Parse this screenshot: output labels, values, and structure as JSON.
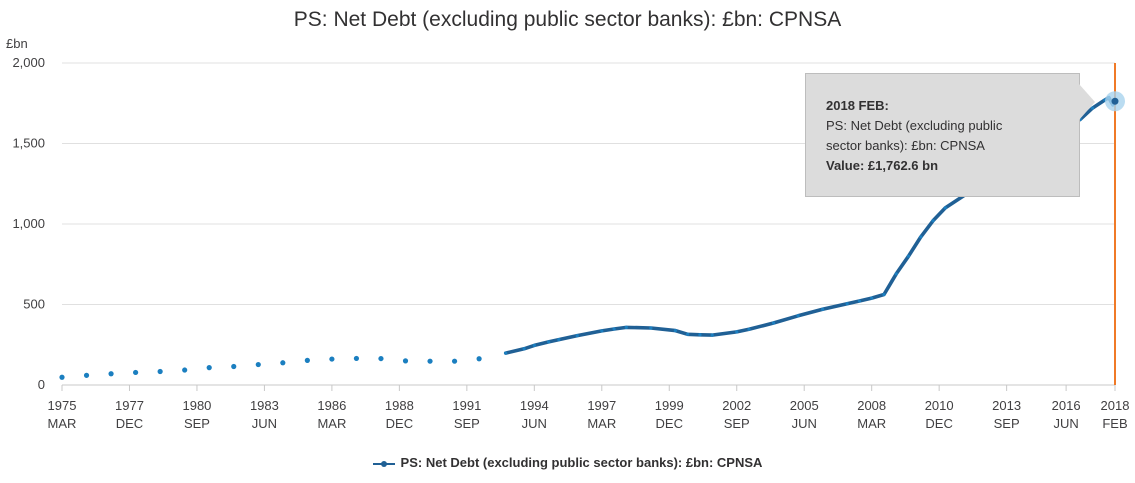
{
  "chart_data": {
    "type": "line",
    "title": "PS: Net Debt (excluding public sector banks): £bn: CPNSA",
    "ylabel": "£bn",
    "ylim": [
      0,
      2000
    ],
    "yticks": [
      0,
      500,
      1000,
      1500,
      2000
    ],
    "ytick_labels": [
      "0",
      "500",
      "1,000",
      "1,500",
      "2,000"
    ],
    "xticks": [
      {
        "year": "1975",
        "period": "MAR"
      },
      {
        "year": "1977",
        "period": "DEC"
      },
      {
        "year": "1980",
        "period": "SEP"
      },
      {
        "year": "1983",
        "period": "JUN"
      },
      {
        "year": "1986",
        "period": "MAR"
      },
      {
        "year": "1988",
        "period": "DEC"
      },
      {
        "year": "1991",
        "period": "SEP"
      },
      {
        "year": "1994",
        "period": "JUN"
      },
      {
        "year": "1997",
        "period": "MAR"
      },
      {
        "year": "1999",
        "period": "DEC"
      },
      {
        "year": "2002",
        "period": "SEP"
      },
      {
        "year": "2005",
        "period": "JUN"
      },
      {
        "year": "2008",
        "period": "MAR"
      },
      {
        "year": "2010",
        "period": "DEC"
      },
      {
        "year": "2013",
        "period": "SEP"
      },
      {
        "year": "2016",
        "period": "JUN"
      },
      {
        "year": "2018",
        "period": "FEB"
      }
    ],
    "annual_points": [
      {
        "x": "1975 MAR",
        "y": 48
      },
      {
        "x": "1976 MAR",
        "y": 60
      },
      {
        "x": "1977 MAR",
        "y": 70
      },
      {
        "x": "1978 MAR",
        "y": 78
      },
      {
        "x": "1979 MAR",
        "y": 84
      },
      {
        "x": "1980 MAR",
        "y": 93
      },
      {
        "x": "1981 MAR",
        "y": 108
      },
      {
        "x": "1982 MAR",
        "y": 115
      },
      {
        "x": "1983 MAR",
        "y": 127
      },
      {
        "x": "1984 MAR",
        "y": 138
      },
      {
        "x": "1985 MAR",
        "y": 153
      },
      {
        "x": "1986 MAR",
        "y": 161
      },
      {
        "x": "1987 MAR",
        "y": 165
      },
      {
        "x": "1988 MAR",
        "y": 164
      },
      {
        "x": "1989 MAR",
        "y": 150
      },
      {
        "x": "1990 MAR",
        "y": 148
      },
      {
        "x": "1991 MAR",
        "y": 148
      },
      {
        "x": "1992 MAR",
        "y": 163
      }
    ],
    "monthly_series": {
      "name": "PS: Net Debt (excluding public sector banks): £bn: CPNSA",
      "points": [
        {
          "x": "1993 APR",
          "y": 198
        },
        {
          "x": "1994 JAN",
          "y": 225
        },
        {
          "x": "1994 JUN",
          "y": 246
        },
        {
          "x": "1995 JAN",
          "y": 268
        },
        {
          "x": "1995 JUN",
          "y": 282
        },
        {
          "x": "1996 MAR",
          "y": 307
        },
        {
          "x": "1997 MAR",
          "y": 336
        },
        {
          "x": "1997 SEP",
          "y": 348
        },
        {
          "x": "1998 MAR",
          "y": 358
        },
        {
          "x": "1999 MAR",
          "y": 354
        },
        {
          "x": "2000 MAR",
          "y": 338
        },
        {
          "x": "2000 SEP",
          "y": 315
        },
        {
          "x": "2001 MAR",
          "y": 312
        },
        {
          "x": "2001 SEP",
          "y": 310
        },
        {
          "x": "2002 SEP",
          "y": 330
        },
        {
          "x": "2003 MAR",
          "y": 346
        },
        {
          "x": "2004 MAR",
          "y": 385
        },
        {
          "x": "2005 MAR",
          "y": 430
        },
        {
          "x": "2006 MAR",
          "y": 470
        },
        {
          "x": "2007 MAR",
          "y": 505
        },
        {
          "x": "2007 SEP",
          "y": 522
        },
        {
          "x": "2008 MAR",
          "y": 540
        },
        {
          "x": "2008 SEP",
          "y": 562
        },
        {
          "x": "2009 MAR",
          "y": 690
        },
        {
          "x": "2009 SEP",
          "y": 800
        },
        {
          "x": "2010 MAR",
          "y": 920
        },
        {
          "x": "2010 SEP",
          "y": 1020
        },
        {
          "x": "2011 MAR",
          "y": 1100
        },
        {
          "x": "2012 MAR",
          "y": 1200
        },
        {
          "x": "2013 MAR",
          "y": 1290
        },
        {
          "x": "2014 MAR",
          "y": 1380
        },
        {
          "x": "2015 MAR",
          "y": 1500
        },
        {
          "x": "2016 MAR",
          "y": 1600
        },
        {
          "x": "2016 SEP",
          "y": 1650
        },
        {
          "x": "2017 MAR",
          "y": 1720
        },
        {
          "x": "2017 SEP",
          "y": 1770
        },
        {
          "x": "2017 NOV",
          "y": 1785
        },
        {
          "x": "2017 DEC",
          "y": 1760
        },
        {
          "x": "2018 JAN",
          "y": 1740
        },
        {
          "x": "2018 FEB",
          "y": 1762.6
        }
      ]
    },
    "highlight": {
      "x": "2018 FEB",
      "y": 1762.6
    },
    "grid": true,
    "legend": "bottom-center"
  },
  "tooltip": {
    "title": "2018 FEB:",
    "series_line1": "PS: Net Debt (excluding public",
    "series_line2": "sector banks): £bn: CPNSA",
    "value": "Value: £1,762.6 bn"
  },
  "legend_label": "PS: Net Debt (excluding public sector banks): £bn: CPNSA",
  "colors": {
    "series": "#206095",
    "marker": "#1b7fc0",
    "highlight": "#f07a27",
    "grid": "#e0e0e0",
    "tooltip_bg": "#dcdcdc"
  }
}
